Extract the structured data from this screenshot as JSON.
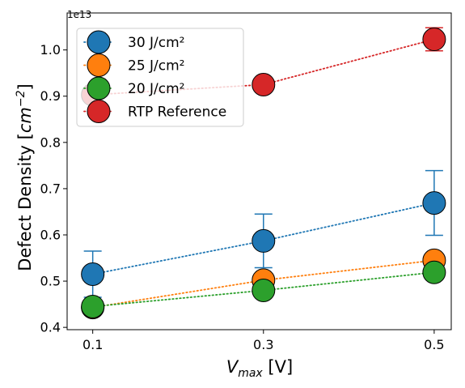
{
  "chart_data": {
    "type": "scatter",
    "xlabel_main": "V",
    "xlabel_sub": "max",
    "xlabel_unit": " [V]",
    "ylabel_text": "Defect Density [",
    "ylabel_unit_base": "cm",
    "ylabel_unit_exp": "−2",
    "ylabel_close": "]",
    "y_offset_label": "1e13",
    "x_ticks": [
      0.1,
      0.3,
      0.5
    ],
    "x_tick_labels": [
      "0.1",
      "0.3",
      "0.5"
    ],
    "y_ticks": [
      0.4,
      0.5,
      0.6,
      0.7,
      0.8,
      0.9,
      1.0
    ],
    "y_tick_labels": [
      "0.4",
      "0.5",
      "0.6",
      "0.7",
      "0.8",
      "0.9",
      "1.0"
    ],
    "xlim": [
      0.07,
      0.52
    ],
    "ylim": [
      0.395,
      1.08
    ],
    "legend_position": "upper-left",
    "series": [
      {
        "name": "30 J/cm²",
        "color": "#1f77b4",
        "x": [
          0.1,
          0.3,
          0.5
        ],
        "y": [
          0.515,
          0.587,
          0.669
        ],
        "yerr": [
          0.05,
          0.058,
          0.07
        ]
      },
      {
        "name": "25 J/cm²",
        "color": "#ff7f0e",
        "x": [
          0.1,
          0.3,
          0.5
        ],
        "y": [
          0.443,
          0.502,
          0.545
        ],
        "yerr": [
          0.0,
          0.0,
          0.0
        ]
      },
      {
        "name": "20 J/cm²",
        "color": "#2ca02c",
        "x": [
          0.1,
          0.3,
          0.5
        ],
        "y": [
          0.445,
          0.48,
          0.519
        ],
        "yerr": [
          0.0,
          0.0,
          0.0
        ]
      },
      {
        "name": "RTP Reference",
        "color": "#d62728",
        "x": [
          0.1,
          0.3,
          0.5
        ],
        "y": [
          0.903,
          0.925,
          1.023
        ],
        "yerr": [
          0.0,
          0.0,
          0.025
        ]
      }
    ]
  }
}
